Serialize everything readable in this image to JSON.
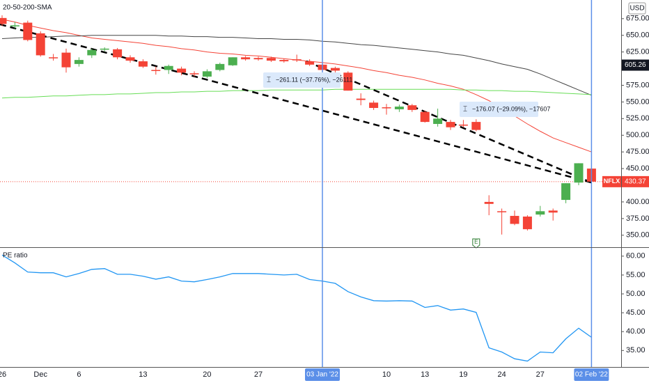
{
  "chart_data": [
    {
      "type": "candlestick",
      "title": "20-50-200-SMA",
      "symbol": "NFLX",
      "currency": "USD",
      "categories": [
        "26",
        null,
        null,
        "Dec",
        null,
        null,
        "6",
        null,
        null,
        null,
        null,
        "13",
        null,
        null,
        null,
        null,
        "20",
        null,
        null,
        null,
        "27",
        null,
        null,
        null,
        null,
        null,
        null,
        null,
        null,
        null,
        "10",
        null,
        null,
        "13",
        null,
        null,
        "19",
        null,
        null,
        "24",
        null,
        null,
        "27",
        null,
        null,
        null,
        null
      ],
      "open": [
        676,
        664,
        669,
        653,
        617,
        624,
        607,
        620,
        629,
        629,
        617,
        611,
        598,
        598,
        600,
        593,
        588,
        598,
        605,
        617,
        616,
        616,
        613,
        614,
        611,
        606,
        601,
        594,
        555,
        549,
        542,
        539,
        545,
        535,
        517,
        520,
        516,
        520,
        400,
        386,
        379,
        378,
        381,
        387,
        403,
        429,
        450
      ],
      "high": [
        680,
        670,
        672,
        656,
        622,
        630,
        617,
        630,
        632,
        631,
        620,
        614,
        603,
        606,
        603,
        596,
        599,
        609,
        617,
        619,
        618,
        618,
        615,
        621,
        614,
        609,
        603,
        596,
        563,
        552,
        547,
        546,
        547,
        537,
        540,
        523,
        523,
        524,
        410,
        390,
        387,
        380,
        394,
        390,
        428,
        458,
        452
      ],
      "low": [
        664,
        660,
        641,
        618,
        612,
        594,
        603,
        616,
        626,
        614,
        609,
        601,
        591,
        592,
        590,
        588,
        586,
        596,
        604,
        612,
        612,
        610,
        609,
        610,
        604,
        596,
        591,
        567,
        545,
        538,
        531,
        535,
        535,
        519,
        513,
        508,
        512,
        506,
        380,
        351,
        365,
        357,
        378,
        372,
        398,
        425,
        427
      ],
      "close": [
        667,
        665,
        643,
        620,
        616,
        602,
        613,
        628,
        630,
        617,
        612,
        603,
        597,
        604,
        594,
        592,
        596,
        607,
        617,
        614,
        614,
        612,
        611,
        613,
        606,
        598,
        597,
        567,
        553,
        541,
        541,
        543,
        538,
        520,
        525,
        512,
        515,
        508,
        397,
        385,
        367,
        359,
        386,
        384,
        428,
        458,
        430.37
      ],
      "up_color": "#4caf50",
      "down_color": "#f44336",
      "overlays": [
        {
          "color": "#f44336",
          "values": [
            674,
            670,
            665,
            661,
            657,
            654,
            650,
            646,
            644,
            642,
            640,
            638,
            635,
            633,
            630,
            628,
            625,
            623,
            622,
            620,
            619,
            617,
            615,
            613,
            611,
            609,
            607,
            604,
            601,
            597,
            594,
            590,
            587,
            583,
            578,
            574,
            569,
            561,
            552,
            540,
            529,
            517,
            506,
            496,
            489,
            482,
            475
          ]
        },
        {
          "color": "#444444",
          "values": [
            645,
            646,
            647,
            647,
            648,
            649,
            649,
            650,
            650,
            650,
            650,
            650,
            650,
            649,
            649,
            648,
            648,
            647,
            647,
            646,
            645,
            645,
            644,
            644,
            643,
            641,
            640,
            638,
            636,
            635,
            633,
            631,
            629,
            627,
            625,
            622,
            620,
            616,
            612,
            607,
            603,
            599,
            592,
            584,
            576,
            568,
            560
          ]
        },
        {
          "color": "#66dd55",
          "values": [
            556,
            557,
            557,
            558,
            559,
            559,
            560,
            561,
            561,
            562,
            562,
            563,
            564,
            564,
            565,
            565,
            566,
            566,
            567,
            567,
            567,
            568,
            568,
            568,
            568,
            568,
            569,
            569,
            569,
            569,
            569,
            569,
            569,
            569,
            569,
            569,
            568,
            568,
            567,
            567,
            566,
            566,
            565,
            564,
            563,
            562,
            561
          ]
        }
      ],
      "ylim": [
        332,
        703
      ],
      "yticks": [
        {
          "value": 675,
          "label": "675.00"
        },
        {
          "value": 650,
          "label": "650.00"
        },
        {
          "value": 625,
          "label": "625.00"
        },
        {
          "value": 575,
          "label": "575.00"
        },
        {
          "value": 550,
          "label": "550.00"
        },
        {
          "value": 525,
          "label": "525.00"
        },
        {
          "value": 500,
          "label": "500.00"
        },
        {
          "value": 475,
          "label": "475.00"
        },
        {
          "value": 450,
          "label": "450.00"
        },
        {
          "value": 400,
          "label": "400.00"
        },
        {
          "value": 375,
          "label": "375.00"
        },
        {
          "value": 350,
          "label": "350.00"
        }
      ],
      "crosshair_price": 605.26,
      "crosshair_x": [
        {
          "at": 25,
          "label": "03 Jan '22"
        },
        {
          "at": 46,
          "label": "02 Feb '22"
        }
      ],
      "measures": [
        "−261.11 (−37.76%), −26111",
        "−176.07 (−29.09%), −17607"
      ],
      "earnings": {
        "at": 37,
        "label": "E"
      }
    },
    {
      "type": "line",
      "title": "PE ratio",
      "color": "#2196f3",
      "values": [
        60.3,
        58.2,
        55.8,
        55.6,
        55.6,
        54.5,
        55.4,
        56.5,
        56.7,
        55.2,
        55.2,
        54.7,
        53.9,
        54.5,
        53.4,
        53.2,
        53.8,
        54.5,
        55.4,
        55.4,
        55.4,
        55.2,
        55.0,
        55.2,
        53.8,
        53.4,
        52.8,
        50.6,
        49.2,
        48.2,
        48.1,
        48.2,
        48.1,
        46.4,
        46.9,
        45.7,
        46.0,
        45.1,
        35.7,
        34.6,
        32.8,
        32.2,
        34.6,
        34.4,
        38.1,
        40.9,
        38.5
      ],
      "ylim": [
        31,
        62
      ],
      "yticks": [
        {
          "value": 60,
          "label": "60.00"
        },
        {
          "value": 55,
          "label": "55.00"
        },
        {
          "value": 50,
          "label": "50.00"
        },
        {
          "value": 45,
          "label": "45.00"
        },
        {
          "value": 40,
          "label": "40.00"
        },
        {
          "value": 35,
          "label": "35.00"
        }
      ]
    }
  ]
}
